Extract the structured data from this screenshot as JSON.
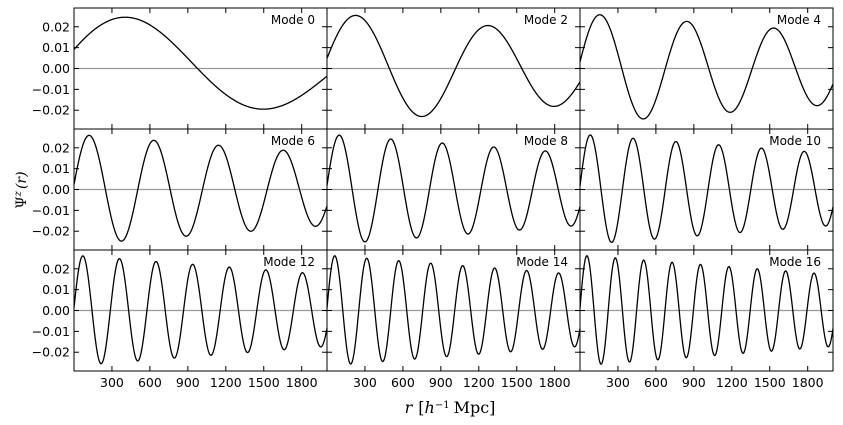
{
  "chart_data": {
    "type": "line",
    "xlabel_parts": {
      "r": "r",
      "open": "[",
      "h": "h",
      "exp": "−1",
      "unit": "Mpc",
      "close": "]"
    },
    "ylabel_parts": {
      "psi": "Ψ",
      "sup": "z",
      "arg": "(r)"
    },
    "xlim": [
      0,
      2000
    ],
    "ylim": [
      -0.029,
      0.029
    ],
    "xticks": [
      300,
      600,
      900,
      1200,
      1500,
      1800
    ],
    "xtick_labels": [
      "300",
      "600",
      "900",
      "1200",
      "1500",
      "1800"
    ],
    "yticks": [
      0.02,
      0.01,
      0.0,
      -0.01,
      -0.02
    ],
    "ytick_labels": [
      "0.02",
      "0.01",
      "0.00",
      "−0.01",
      "−0.02"
    ],
    "zero_line": true,
    "grid": false,
    "panels": [
      {
        "label": "Mode 0",
        "half_cycles": 1.82
      },
      {
        "label": "Mode 2",
        "half_cycles": 3.82
      },
      {
        "label": "Mode 4",
        "half_cycles": 5.82
      },
      {
        "label": "Mode 6",
        "half_cycles": 7.82
      },
      {
        "label": "Mode 8",
        "half_cycles": 9.82
      },
      {
        "label": "Mode 10",
        "half_cycles": 11.82
      },
      {
        "label": "Mode 12",
        "half_cycles": 13.82
      },
      {
        "label": "Mode 14",
        "half_cycles": 15.82
      },
      {
        "label": "Mode 16",
        "half_cycles": 17.82
      }
    ],
    "colors": {
      "curve": "#000000",
      "zero_line": "#999999",
      "frame": "#000000"
    }
  }
}
